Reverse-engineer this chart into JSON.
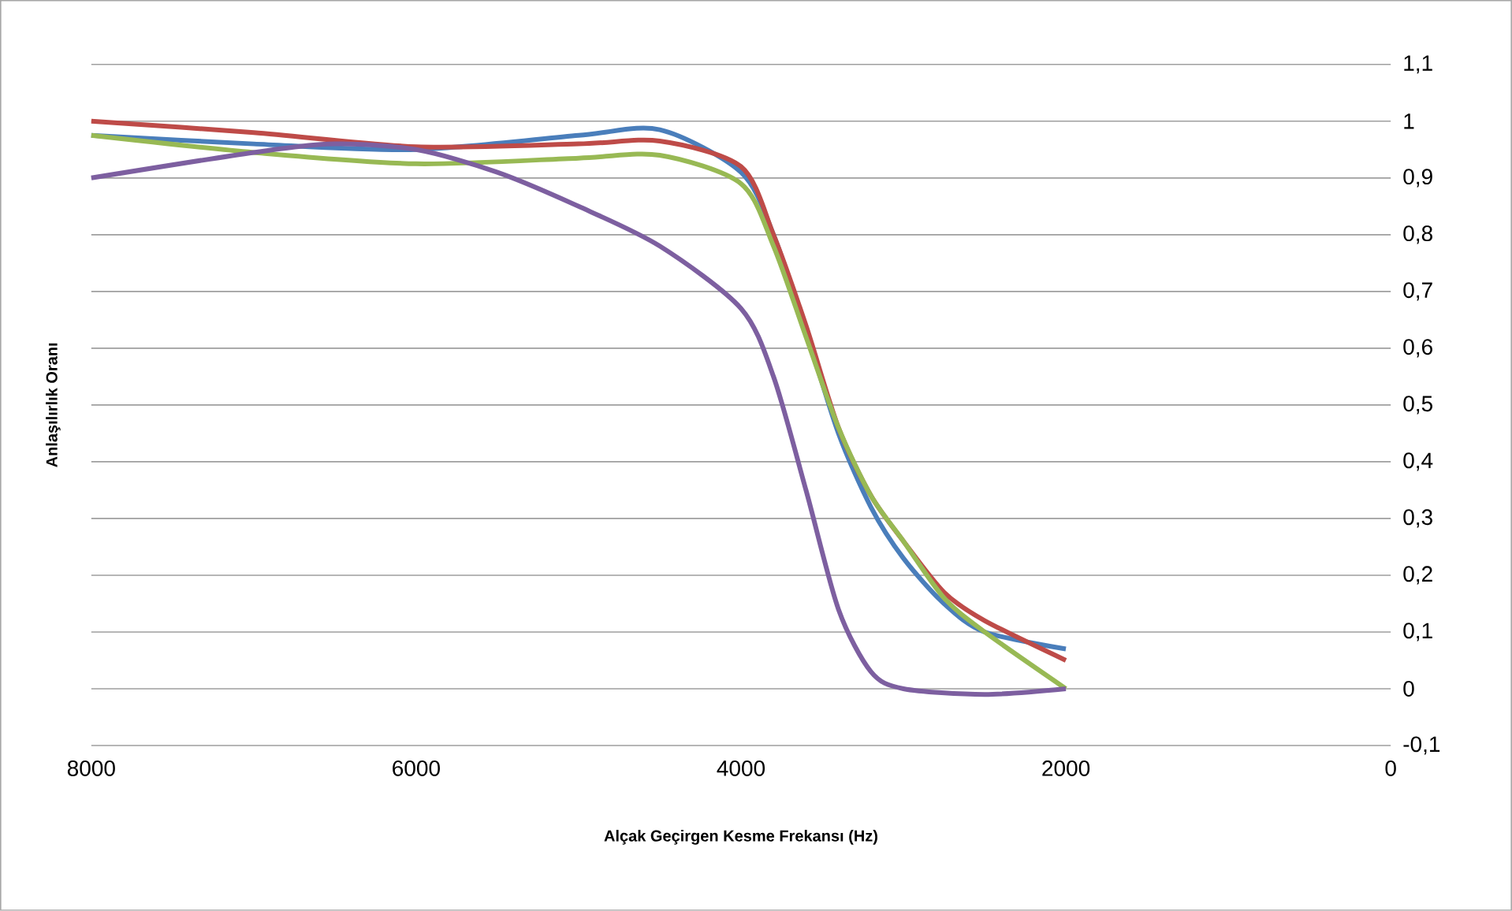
{
  "chart_data": {
    "type": "line",
    "xlabel": "Alçak Geçirgen Kesme Frekansı (Hz)",
    "ylabel": "Anlaşılırlık Oranı",
    "x": [
      8000,
      7000,
      6000,
      5000,
      4500,
      4000,
      3800,
      3600,
      3400,
      3200,
      3000,
      2750,
      2500,
      2000
    ],
    "series": [
      {
        "color": "#4a7ebb",
        "values": [
          0.975,
          0.96,
          0.95,
          0.975,
          0.985,
          0.91,
          0.8,
          0.63,
          0.45,
          0.32,
          0.23,
          0.15,
          0.1,
          0.07
        ]
      },
      {
        "color": "#be4b48",
        "values": [
          1.0,
          0.98,
          0.955,
          0.96,
          0.965,
          0.92,
          0.8,
          0.64,
          0.46,
          0.34,
          0.26,
          0.17,
          0.12,
          0.05
        ]
      },
      {
        "color": "#98b954",
        "values": [
          0.975,
          0.945,
          0.925,
          0.935,
          0.94,
          0.89,
          0.78,
          0.62,
          0.46,
          0.34,
          0.26,
          0.16,
          0.1,
          0.0
        ]
      },
      {
        "color": "#7d5fa0",
        "x": [
          8000,
          7000,
          6500,
          6000,
          5500,
          5000,
          4500,
          4000,
          3800,
          3600,
          3400,
          3200,
          3000,
          2500,
          2000
        ],
        "values": [
          0.9,
          0.945,
          0.96,
          0.95,
          0.91,
          0.85,
          0.78,
          0.67,
          0.55,
          0.35,
          0.14,
          0.03,
          0.0,
          -0.01,
          0.0
        ]
      }
    ],
    "xlim": [
      8000,
      0
    ],
    "xticks": [
      0,
      2000,
      4000,
      6000,
      8000
    ],
    "ylim": [
      -0.1,
      1.1
    ],
    "yticks": [
      {
        "value": -0.1,
        "label": "-0,1"
      },
      0,
      {
        "value": 0.1,
        "label": "0,1"
      },
      {
        "value": 0.2,
        "label": "0,2"
      },
      {
        "value": 0.3,
        "label": "0,3"
      },
      {
        "value": 0.4,
        "label": "0,4"
      },
      {
        "value": 0.5,
        "label": "0,5"
      },
      {
        "value": 0.6,
        "label": "0,6"
      },
      {
        "value": 0.7,
        "label": "0,7"
      },
      {
        "value": 0.8,
        "label": "0,8"
      },
      {
        "value": 0.9,
        "label": "0,9"
      },
      1,
      {
        "value": 1.1,
        "label": "1,1"
      }
    ],
    "grid": "y",
    "line_style": "solid",
    "marker": "none"
  }
}
